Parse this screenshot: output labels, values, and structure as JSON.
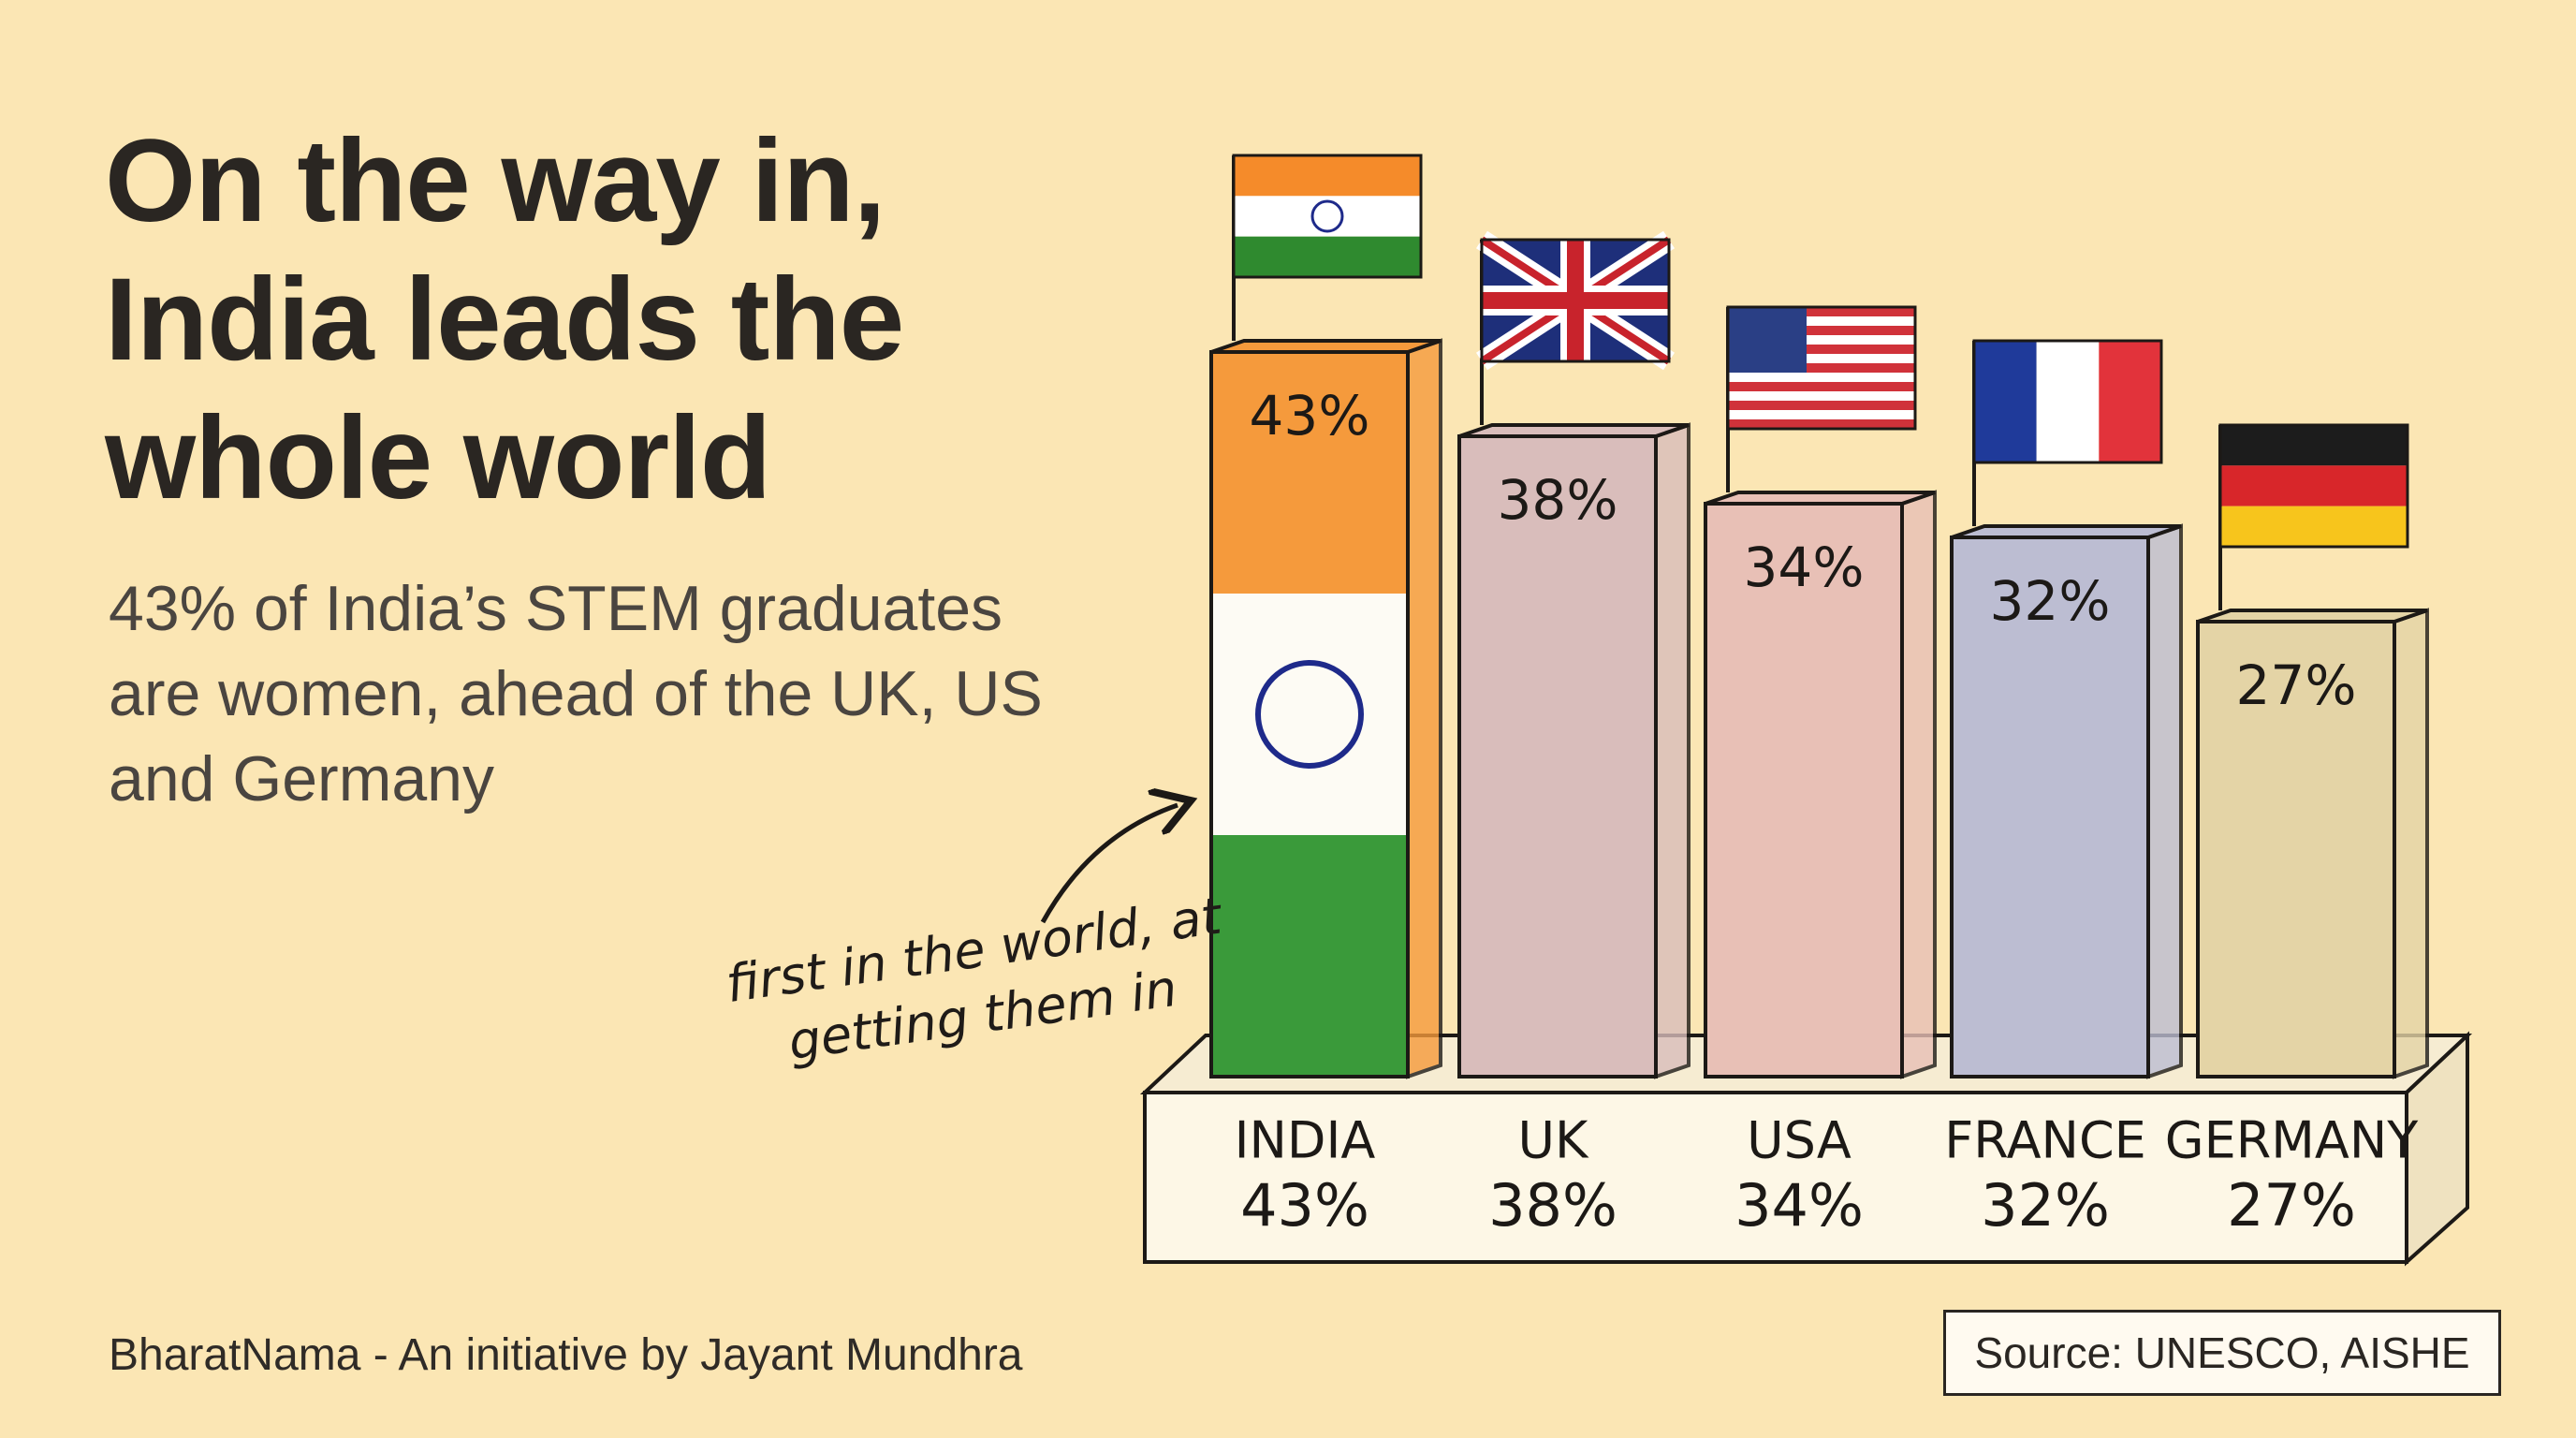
{
  "chart_data": {
    "type": "bar",
    "title": "On the way in, India leads the whole world",
    "subtitle": "43% of India’s STEM graduates are women, ahead of the UK, US and Germany",
    "annotation": "first in the world, at getting them in",
    "footer": "BharatNama - An initiative by Jayant Mundhra",
    "source": "Source: UNESCO, AISHE",
    "categories": [
      "INDIA",
      "UK",
      "USA",
      "FRANCE",
      "GERMANY"
    ],
    "values": [
      43,
      38,
      34,
      32,
      27
    ],
    "value_labels": [
      "43%",
      "38%",
      "34%",
      "32%",
      "27%"
    ],
    "colors": [
      "#f59a3c",
      "#d9bdbb",
      "#e8c0b6",
      "#bcbdd2",
      "#e4d4a6"
    ]
  }
}
